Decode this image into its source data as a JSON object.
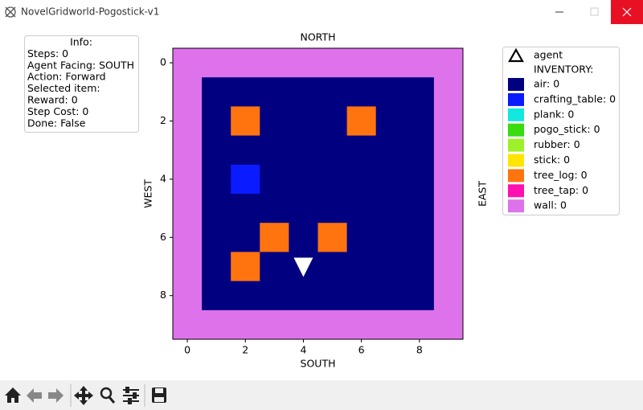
{
  "window": {
    "title": "NovelGridworld-Pogostick-v1"
  },
  "info": [
    "Info:",
    "Steps: 0",
    "Agent Facing: SOUTH",
    "Action: Forward",
    "Selected item:",
    "Reward: 0",
    "Step Cost: 0",
    "Done: False"
  ],
  "plot": {
    "top_label": "NORTH",
    "xlabel": "SOUTH",
    "ylabel": "WEST",
    "right_label": "EAST",
    "xlim": [
      -0.5,
      9.5
    ],
    "ylim": [
      9.5,
      -0.5
    ],
    "xticks": [
      0,
      2,
      4,
      6,
      8
    ],
    "yticks": [
      0,
      2,
      4,
      6,
      8
    ],
    "areas": [
      {
        "color": "#de72eb",
        "x": [
          -0.5,
          9.5
        ],
        "y": [
          -0.5,
          9.5
        ]
      },
      {
        "color": "#000080",
        "x": [
          0.5,
          8.5
        ],
        "y": [
          0.5,
          8.5
        ]
      }
    ],
    "cells": [
      {
        "color": "#ff740f",
        "x": 2,
        "y": 2
      },
      {
        "color": "#ff740f",
        "x": 6,
        "y": 2
      },
      {
        "color": "#0a1cff",
        "x": 2,
        "y": 4
      },
      {
        "color": "#ff740f",
        "x": 3,
        "y": 6
      },
      {
        "color": "#ff740f",
        "x": 5,
        "y": 6
      },
      {
        "color": "#ff740f",
        "x": 2,
        "y": 7
      }
    ],
    "agent": {
      "x": 4,
      "y": 7,
      "color": "#ffffff"
    }
  },
  "legend": {
    "agent": "agent",
    "heading": "INVENTORY:",
    "items": [
      {
        "label": "air: 0",
        "color": "#000080"
      },
      {
        "label": "crafting_table: 0",
        "color": "#0a1cff"
      },
      {
        "label": "plank: 0",
        "color": "#12e8e0"
      },
      {
        "label": "pogo_stick: 0",
        "color": "#38dc10"
      },
      {
        "label": "rubber: 0",
        "color": "#9ef02a"
      },
      {
        "label": "stick: 0",
        "color": "#ffe405"
      },
      {
        "label": "tree_log: 0",
        "color": "#ff740f"
      },
      {
        "label": "tree_tap: 0",
        "color": "#ff10b0"
      },
      {
        "label": "wall: 0",
        "color": "#de72eb"
      }
    ]
  }
}
